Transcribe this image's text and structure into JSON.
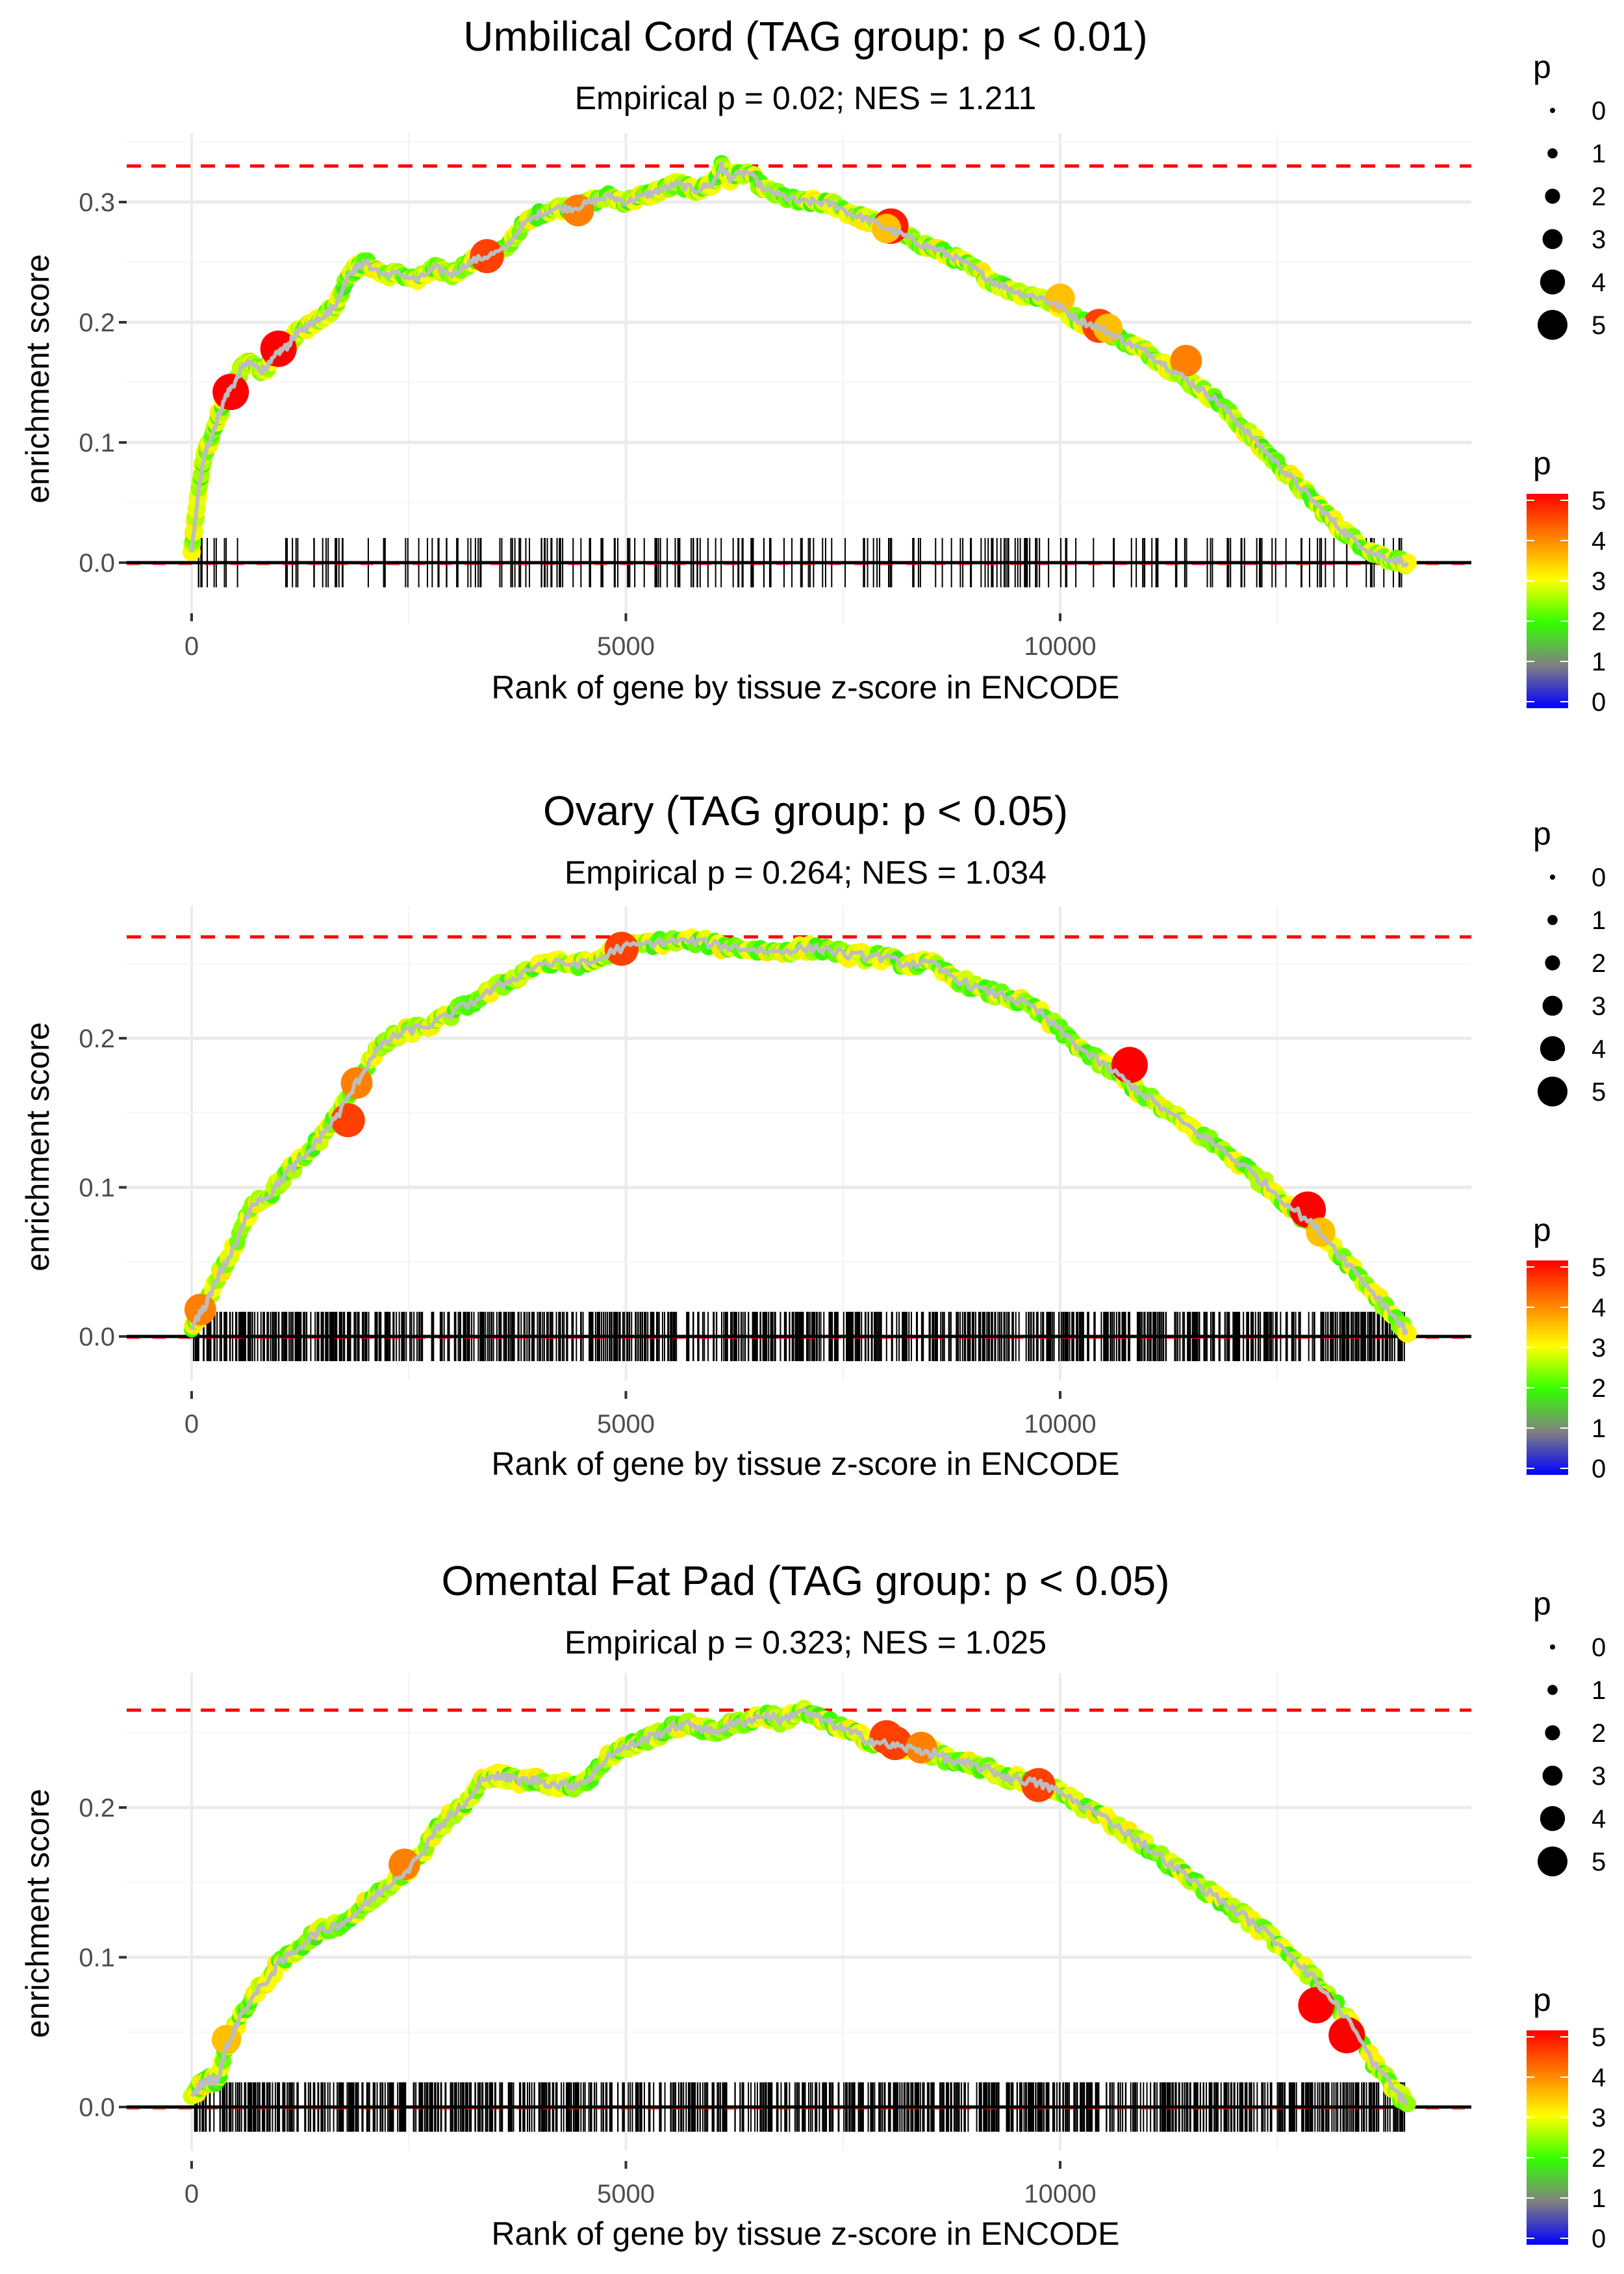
{
  "chart_data": [
    {
      "type": "scatter",
      "title": "Umbilical Cord (TAG group: p < 0.01)",
      "subtitle": "Empirical p = 0.02; NES = 1.211",
      "xlabel": "Rank of gene by tissue z-score in ENCODE",
      "ylabel": "enrichment score",
      "xlim": [
        -800,
        14500
      ],
      "ylim": [
        -0.035,
        0.345
      ],
      "x_ticks": [
        0,
        5000,
        10000
      ],
      "x_tick_labels": [
        "0",
        "5000",
        "10000"
      ],
      "y_ticks": [
        0.0,
        0.1,
        0.2,
        0.3
      ],
      "y_tick_labels": [
        "0.0",
        "0.1",
        "0.2",
        "0.3"
      ],
      "max_es_line": 0.33,
      "grid": true,
      "series": [
        {
          "name": "running enrichment score",
          "x": [
            0,
            50,
            100,
            150,
            200,
            300,
            400,
            500,
            600,
            700,
            800,
            900,
            1000,
            1100,
            1200,
            1300,
            1400,
            1500,
            1600,
            1700,
            1800,
            1900,
            2000,
            2200,
            2400,
            2600,
            2800,
            3000,
            3200,
            3400,
            3600,
            3800,
            4000,
            4200,
            4400,
            4600,
            4800,
            5000,
            5200,
            5400,
            5600,
            5800,
            6000,
            6100,
            6200,
            6400,
            6600,
            6800,
            7000,
            7200,
            7400,
            7600,
            7800,
            8000,
            8200,
            8400,
            8600,
            8800,
            9000,
            9200,
            9400,
            9600,
            9800,
            10000,
            10200,
            10400,
            10600,
            10800,
            11000,
            11200,
            11400,
            11600,
            11800,
            12000,
            12200,
            12400,
            12600,
            12800,
            13000,
            13200,
            13400,
            13600,
            13800,
            14000
          ],
          "y": [
            0.01,
            0.04,
            0.07,
            0.09,
            0.1,
            0.12,
            0.14,
            0.15,
            0.165,
            0.165,
            0.16,
            0.165,
            0.175,
            0.18,
            0.19,
            0.195,
            0.2,
            0.205,
            0.21,
            0.22,
            0.24,
            0.245,
            0.25,
            0.24,
            0.24,
            0.235,
            0.245,
            0.24,
            0.25,
            0.255,
            0.26,
            0.28,
            0.29,
            0.295,
            0.295,
            0.3,
            0.305,
            0.3,
            0.305,
            0.31,
            0.315,
            0.31,
            0.315,
            0.33,
            0.32,
            0.325,
            0.31,
            0.305,
            0.3,
            0.3,
            0.298,
            0.29,
            0.285,
            0.278,
            0.272,
            0.265,
            0.26,
            0.253,
            0.245,
            0.235,
            0.228,
            0.223,
            0.22,
            0.213,
            0.202,
            0.197,
            0.19,
            0.182,
            0.175,
            0.165,
            0.155,
            0.145,
            0.135,
            0.12,
            0.105,
            0.09,
            0.075,
            0.06,
            0.045,
            0.03,
            0.018,
            0.008,
            0.003,
            0.0
          ]
        },
        {
          "name": "highlighted genes (p)",
          "x": [
            450,
            1000,
            3400,
            4450,
            8050,
            8000,
            10000,
            10450,
            10550,
            11450
          ],
          "y": [
            0.142,
            0.178,
            0.255,
            0.293,
            0.28,
            0.278,
            0.22,
            0.197,
            0.195,
            0.168
          ],
          "p": [
            5,
            5,
            4.5,
            4,
            4.8,
            3.5,
            3.5,
            4.5,
            3.5,
            4
          ]
        }
      ],
      "rug_density": "sparse"
    },
    {
      "type": "scatter",
      "title": "Ovary (TAG group: p < 0.05)",
      "subtitle": "Empirical p = 0.264; NES = 1.034",
      "xlabel": "Rank of gene by tissue z-score in ENCODE",
      "ylabel": "enrichment score",
      "xlim": [
        -800,
        14500
      ],
      "ylim": [
        -0.025,
        0.28
      ],
      "x_ticks": [
        0,
        5000,
        10000
      ],
      "x_tick_labels": [
        "0",
        "5000",
        "10000"
      ],
      "y_ticks": [
        0.0,
        0.1,
        0.2
      ],
      "y_tick_labels": [
        "0.0",
        "0.1",
        "0.2"
      ],
      "max_es_line": 0.268,
      "grid": true,
      "series": [
        {
          "name": "running enrichment score",
          "x": [
            0,
            150,
            300,
            500,
            700,
            900,
            1100,
            1300,
            1500,
            1700,
            1900,
            2100,
            2300,
            2500,
            2800,
            3100,
            3400,
            3700,
            4000,
            4300,
            4600,
            4900,
            5200,
            5500,
            5800,
            6100,
            6400,
            6700,
            7000,
            7300,
            7600,
            7900,
            8200,
            8500,
            8800,
            9100,
            9400,
            9700,
            10000,
            10300,
            10600,
            10900,
            11200,
            11500,
            11800,
            12100,
            12400,
            12700,
            13000,
            13300,
            13600,
            13900,
            14000
          ],
          "y": [
            0.005,
            0.02,
            0.04,
            0.06,
            0.09,
            0.095,
            0.11,
            0.12,
            0.135,
            0.15,
            0.17,
            0.19,
            0.2,
            0.205,
            0.21,
            0.22,
            0.23,
            0.24,
            0.25,
            0.25,
            0.25,
            0.26,
            0.263,
            0.265,
            0.265,
            0.262,
            0.26,
            0.258,
            0.26,
            0.26,
            0.255,
            0.255,
            0.25,
            0.25,
            0.24,
            0.232,
            0.228,
            0.22,
            0.205,
            0.19,
            0.178,
            0.165,
            0.152,
            0.14,
            0.128,
            0.115,
            0.1,
            0.085,
            0.07,
            0.05,
            0.03,
            0.01,
            0.002
          ]
        },
        {
          "name": "highlighted genes (p)",
          "x": [
            100,
            1800,
            1900,
            4950,
            10800,
            12850,
            13000
          ],
          "y": [
            0.018,
            0.145,
            0.17,
            0.26,
            0.182,
            0.085,
            0.07
          ],
          "p": [
            4,
            4.5,
            4,
            4.5,
            5,
            5,
            3.5
          ]
        }
      ],
      "rug_density": "dense"
    },
    {
      "type": "scatter",
      "title": "Omental Fat Pad (TAG group: p < 0.05)",
      "subtitle": "Empirical p = 0.323; NES = 1.025",
      "xlabel": "Rank of gene by tissue z-score in ENCODE",
      "ylabel": "enrichment score",
      "xlim": [
        -800,
        14500
      ],
      "ylim": [
        -0.025,
        0.28
      ],
      "x_ticks": [
        0,
        5000,
        10000
      ],
      "x_tick_labels": [
        "0",
        "5000",
        "10000"
      ],
      "y_ticks": [
        0.0,
        0.1,
        0.2
      ],
      "y_tick_labels": [
        "0.0",
        "0.1",
        "0.2"
      ],
      "max_es_line": 0.265,
      "grid": true,
      "series": [
        {
          "name": "running enrichment score",
          "x": [
            0,
            100,
            200,
            300,
            400,
            600,
            800,
            1000,
            1200,
            1400,
            1600,
            1800,
            2000,
            2200,
            2400,
            2600,
            2800,
            3000,
            3200,
            3400,
            3600,
            3800,
            4000,
            4200,
            4400,
            4600,
            4800,
            5000,
            5200,
            5400,
            5600,
            5800,
            6000,
            6200,
            6400,
            6600,
            6800,
            7000,
            7200,
            7400,
            7600,
            7800,
            8000,
            8200,
            8400,
            8600,
            8800,
            9000,
            9200,
            9400,
            9600,
            9800,
            10000,
            10300,
            10600,
            10900,
            11200,
            11500,
            11800,
            12100,
            12400,
            12700,
            13000,
            13300,
            13600,
            13900,
            14000
          ],
          "y": [
            0.005,
            0.015,
            0.018,
            0.018,
            0.04,
            0.065,
            0.08,
            0.095,
            0.105,
            0.115,
            0.12,
            0.125,
            0.135,
            0.145,
            0.155,
            0.165,
            0.185,
            0.195,
            0.205,
            0.222,
            0.22,
            0.218,
            0.218,
            0.215,
            0.215,
            0.22,
            0.235,
            0.24,
            0.245,
            0.25,
            0.255,
            0.255,
            0.25,
            0.255,
            0.258,
            0.262,
            0.258,
            0.265,
            0.26,
            0.255,
            0.25,
            0.245,
            0.242,
            0.24,
            0.238,
            0.235,
            0.23,
            0.228,
            0.225,
            0.22,
            0.218,
            0.215,
            0.21,
            0.2,
            0.19,
            0.178,
            0.165,
            0.152,
            0.14,
            0.128,
            0.115,
            0.1,
            0.08,
            0.06,
            0.03,
            0.008,
            0.002
          ]
        },
        {
          "name": "highlighted genes (p)",
          "x": [
            400,
            2450,
            8000,
            8100,
            8400,
            9750,
            12950,
            13300
          ],
          "y": [
            0.045,
            0.162,
            0.247,
            0.243,
            0.24,
            0.215,
            0.068,
            0.048
          ],
          "p": [
            3.5,
            4,
            4.5,
            4.5,
            4,
            4.5,
            5,
            5
          ]
        }
      ],
      "rug_density": "dense"
    }
  ],
  "legends": {
    "size_legend": {
      "title": "p",
      "labels": [
        "0",
        "1",
        "2",
        "3",
        "4",
        "5"
      ]
    },
    "color_legend": {
      "title": "p",
      "labels": [
        "5",
        "4",
        "3",
        "2",
        "1",
        "0"
      ],
      "colors": [
        "#0000ff",
        "#808080",
        "#33ff00",
        "#ffff00",
        "#ff8000",
        "#ff0000"
      ]
    }
  }
}
